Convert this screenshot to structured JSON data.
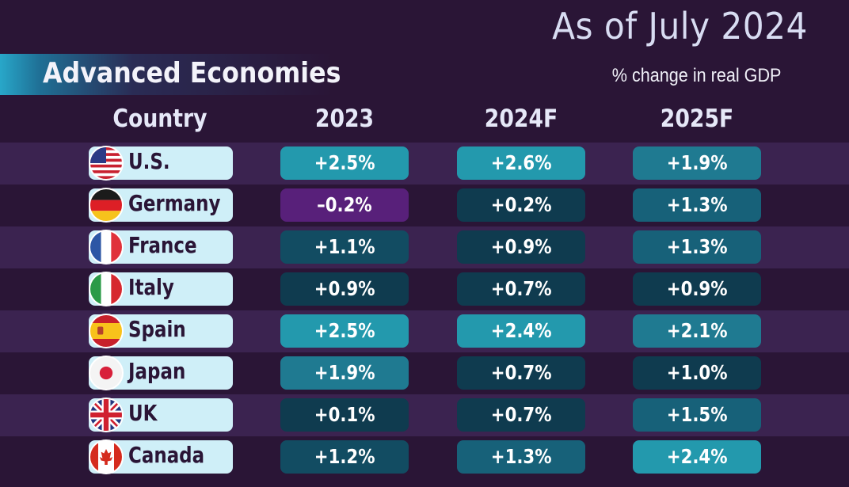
{
  "header": {
    "subtitle": "As of July 2024",
    "section_title": "Advanced Economies",
    "unit_note": "% change in real GDP"
  },
  "columns": [
    "Country",
    "2023",
    "2024F",
    "2025F"
  ],
  "colors": {
    "background": "#2a1536",
    "row_band": "#3b2350",
    "country_pill": "#cfeff8",
    "negative": "#58207a",
    "scale": [
      "#0f3b4f",
      "#124c62",
      "#176179",
      "#1f7a91",
      "#2399ad"
    ]
  },
  "rows": [
    {
      "country": "U.S.",
      "flag": "us-flag-icon",
      "values": [
        "+2.5%",
        "+2.6%",
        "+1.9%"
      ],
      "levels": [
        "v-hi",
        "v-hi",
        "v-mh"
      ]
    },
    {
      "country": "Germany",
      "flag": "germany-flag-icon",
      "values": [
        "–0.2%",
        "+0.2%",
        "+1.3%"
      ],
      "levels": [
        "v-neg",
        "v-vlo",
        "v-mid"
      ]
    },
    {
      "country": "France",
      "flag": "france-flag-icon",
      "values": [
        "+1.1%",
        "+0.9%",
        "+1.3%"
      ],
      "levels": [
        "v-lo",
        "v-vlo",
        "v-mid"
      ]
    },
    {
      "country": "Italy",
      "flag": "italy-flag-icon",
      "values": [
        "+0.9%",
        "+0.7%",
        "+0.9%"
      ],
      "levels": [
        "v-vlo",
        "v-vlo",
        "v-vlo"
      ]
    },
    {
      "country": "Spain",
      "flag": "spain-flag-icon",
      "values": [
        "+2.5%",
        "+2.4%",
        "+2.1%"
      ],
      "levels": [
        "v-hi",
        "v-hi",
        "v-mh"
      ]
    },
    {
      "country": "Japan",
      "flag": "japan-flag-icon",
      "values": [
        "+1.9%",
        "+0.7%",
        "+1.0%"
      ],
      "levels": [
        "v-mh",
        "v-vlo",
        "v-vlo"
      ]
    },
    {
      "country": "UK",
      "flag": "uk-flag-icon",
      "values": [
        "+0.1%",
        "+0.7%",
        "+1.5%"
      ],
      "levels": [
        "v-vlo",
        "v-vlo",
        "v-mid"
      ]
    },
    {
      "country": "Canada",
      "flag": "canada-flag-icon",
      "values": [
        "+1.2%",
        "+1.3%",
        "+2.4%"
      ],
      "levels": [
        "v-lo",
        "v-mid",
        "v-hi"
      ]
    }
  ]
}
